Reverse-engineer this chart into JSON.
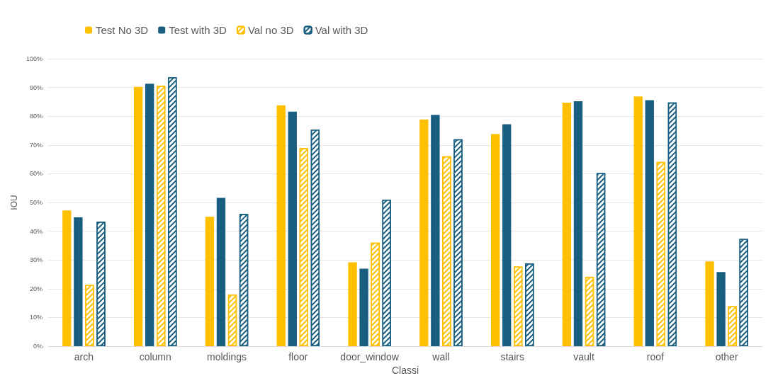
{
  "chart_data": {
    "type": "bar",
    "xlabel": "Classi",
    "ylabel": "IOU",
    "categories": [
      "arch",
      "column",
      "moldings",
      "floor",
      "door_window",
      "wall",
      "stairs",
      "vault",
      "roof",
      "other"
    ],
    "series": [
      {
        "name": "Test No 3D",
        "color": "#ffc000",
        "values": [
          47.2,
          90.2,
          45.0,
          83.8,
          29.2,
          78.9,
          73.8,
          84.7,
          86.9,
          29.5
        ]
      },
      {
        "name": "Test with 3D",
        "color": "#175e80",
        "values": [
          44.8,
          91.3,
          51.6,
          81.6,
          27.0,
          80.5,
          77.2,
          85.2,
          85.6,
          25.8
        ]
      },
      {
        "name": "Val no 3D",
        "color": "#ffc000",
        "values": [
          21.3,
          90.6,
          18.0,
          68.9,
          36.0,
          66.1,
          27.7,
          24.1,
          64.1,
          13.9
        ]
      },
      {
        "name": "Val with 3D",
        "color": "#175e80",
        "values": [
          43.3,
          93.6,
          46.0,
          75.4,
          51.0,
          72.0,
          28.8,
          60.2,
          84.8,
          37.3
        ]
      }
    ],
    "ylim": [
      0,
      100
    ],
    "yticks": [
      {
        "value": 0,
        "label": "0%"
      },
      {
        "value": 10,
        "label": "10%"
      },
      {
        "value": 20,
        "label": "20%"
      },
      {
        "value": 30,
        "label": "30%"
      },
      {
        "value": 40,
        "label": "40%"
      },
      {
        "value": 50,
        "label": "50%"
      },
      {
        "value": 60,
        "label": "60%"
      },
      {
        "value": 70,
        "label": "70%"
      },
      {
        "value": 80,
        "label": "80%"
      },
      {
        "value": 90,
        "label": "90%"
      },
      {
        "value": 100,
        "label": "100%"
      }
    ],
    "grid": "y",
    "legend": "top left"
  }
}
